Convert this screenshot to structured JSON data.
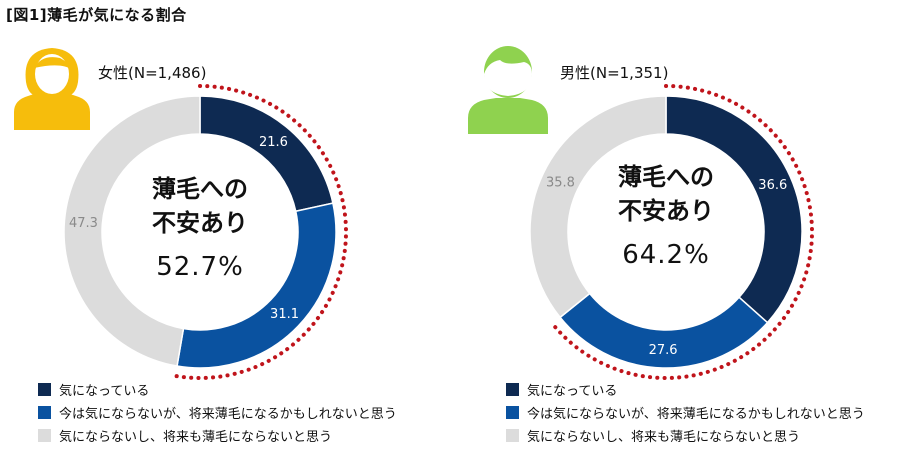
{
  "figure_title": "[図1]薄毛が気になる割合",
  "colors": {
    "series1": "#0e2a52",
    "series2": "#0a52a0",
    "series3": "#dcdcdc",
    "dots": "#c0141b",
    "female_icon": "#f6bd0c",
    "male_icon": "#8fd24f"
  },
  "legend": [
    "気になっている",
    "今は気にならないが、将来薄毛になるかもしれないと思う",
    "気にならないし、将来も薄毛にならないと思う"
  ],
  "chart_data": [
    {
      "type": "pie",
      "title": "女性(N=1,486)",
      "icon": "female-person-icon",
      "categories": [
        "気になっている",
        "今は気にならないが、将来薄毛になるかもしれないと思う",
        "気にならないし、将来も薄毛にならないと思う"
      ],
      "values": [
        21.6,
        31.1,
        47.3
      ],
      "labels": [
        "21.6",
        "31.1",
        "47.3"
      ],
      "center_text": [
        "薄毛への",
        "不安あり",
        "52.7%"
      ]
    },
    {
      "type": "pie",
      "title": "男性(N=1,351)",
      "icon": "male-person-icon",
      "categories": [
        "気になっている",
        "今は気にならないが、将来薄毛になるかもしれないと思う",
        "気にならないし、将来も薄毛にならないと思う"
      ],
      "values": [
        36.6,
        27.6,
        35.8
      ],
      "labels": [
        "36.6",
        "27.6",
        "35.8"
      ],
      "center_text": [
        "薄毛への",
        "不安あり",
        "64.2%"
      ]
    }
  ]
}
